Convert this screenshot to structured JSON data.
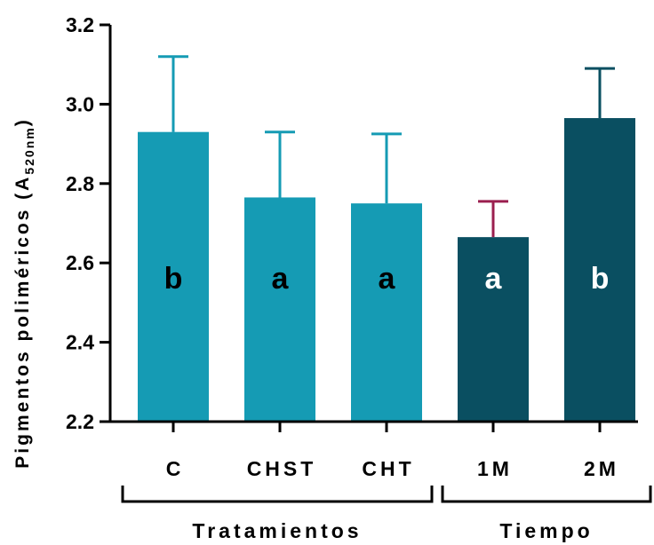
{
  "chart_data": {
    "type": "bar",
    "ylabel_main": "Pigmentos poliméricos (A",
    "ylabel_sub": "520nm",
    "ylabel_close": ")",
    "ylim": [
      2.2,
      3.2
    ],
    "yticks": [
      "2.2",
      "2.4",
      "2.6",
      "2.8",
      "3.0",
      "3.2"
    ],
    "categories": [
      "C",
      "CHST",
      "CHT",
      "1M",
      "2M"
    ],
    "values": [
      2.93,
      2.765,
      2.75,
      2.665,
      2.965
    ],
    "errors": [
      0.19,
      0.165,
      0.175,
      0.09,
      0.125
    ],
    "letters": [
      "b",
      "a",
      "a",
      "a",
      "b"
    ],
    "colors": [
      "#159bb4",
      "#159bb4",
      "#159bb4",
      "#0a4f61",
      "#0a4f61"
    ],
    "error_colors": [
      "#159bb4",
      "#159bb4",
      "#159bb4",
      "#9b1f4f",
      "#0a4f61"
    ],
    "letter_colors": [
      "#000000",
      "#000000",
      "#000000",
      "#ffffff",
      "#ffffff"
    ],
    "groups": [
      {
        "label": "Tratamientos",
        "from": 0,
        "to": 2
      },
      {
        "label": "Tiempo",
        "from": 3,
        "to": 4
      }
    ],
    "grid": false
  }
}
